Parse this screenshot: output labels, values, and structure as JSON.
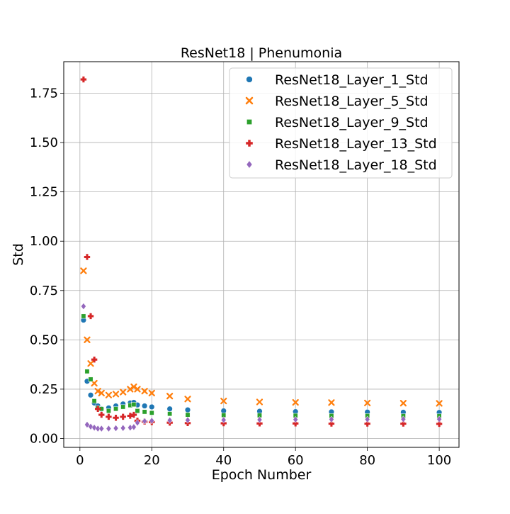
{
  "chart_data": {
    "type": "scatter",
    "title": "ResNet18 | Phenumonia",
    "xlabel": "Epoch Number",
    "ylabel": "Std",
    "xlim": [
      -4.5,
      105.5
    ],
    "ylim": [
      -0.045,
      1.91
    ],
    "xticks": [
      0,
      20,
      40,
      60,
      80,
      100
    ],
    "xtick_labels": [
      "0",
      "20",
      "40",
      "60",
      "80",
      "100"
    ],
    "yticks": [
      0.0,
      0.25,
      0.5,
      0.75,
      1.0,
      1.25,
      1.5,
      1.75
    ],
    "ytick_labels": [
      "0.00",
      "0.25",
      "0.50",
      "0.75",
      "1.00",
      "1.25",
      "1.50",
      "1.75"
    ],
    "grid": true,
    "legend_position": "top-right",
    "series": [
      {
        "name": "ResNet18_Layer_1_Std",
        "color": "#1f77b4",
        "marker": "circle",
        "x": [
          1,
          2,
          3,
          4,
          5,
          6,
          8,
          10,
          12,
          14,
          15,
          16,
          18,
          20,
          25,
          30,
          40,
          50,
          60,
          70,
          80,
          90,
          100
        ],
        "y": [
          0.6,
          0.29,
          0.22,
          0.18,
          0.165,
          0.15,
          0.155,
          0.165,
          0.175,
          0.18,
          0.183,
          0.17,
          0.165,
          0.16,
          0.15,
          0.145,
          0.14,
          0.138,
          0.136,
          0.135,
          0.134,
          0.133,
          0.132
        ]
      },
      {
        "name": "ResNet18_Layer_5_Std",
        "color": "#ff7f0e",
        "marker": "x",
        "x": [
          1,
          2,
          3,
          4,
          5,
          6,
          8,
          10,
          12,
          14,
          15,
          16,
          18,
          20,
          25,
          30,
          40,
          50,
          60,
          70,
          80,
          90,
          100
        ],
        "y": [
          0.85,
          0.5,
          0.38,
          0.28,
          0.24,
          0.23,
          0.22,
          0.225,
          0.235,
          0.25,
          0.262,
          0.25,
          0.24,
          0.23,
          0.215,
          0.2,
          0.19,
          0.185,
          0.183,
          0.182,
          0.18,
          0.179,
          0.178
        ]
      },
      {
        "name": "ResNet18_Layer_9_Std",
        "color": "#2ca02c",
        "marker": "square",
        "x": [
          1,
          2,
          3,
          4,
          5,
          6,
          8,
          10,
          12,
          14,
          15,
          16,
          18,
          20,
          25,
          30,
          40,
          50,
          60,
          70,
          80,
          90,
          100
        ],
        "y": [
          0.62,
          0.34,
          0.3,
          0.19,
          0.155,
          0.15,
          0.14,
          0.15,
          0.16,
          0.168,
          0.172,
          0.14,
          0.135,
          0.13,
          0.125,
          0.12,
          0.118,
          0.117,
          0.116,
          0.115,
          0.115,
          0.114,
          0.114
        ]
      },
      {
        "name": "ResNet18_Layer_13_Std",
        "color": "#d62728",
        "marker": "plus",
        "x": [
          1,
          2,
          3,
          4,
          5,
          6,
          8,
          10,
          12,
          14,
          15,
          16,
          18,
          20,
          25,
          30,
          40,
          50,
          60,
          70,
          80,
          90,
          100
        ],
        "y": [
          1.82,
          0.92,
          0.62,
          0.4,
          0.15,
          0.12,
          0.11,
          0.105,
          0.11,
          0.115,
          0.12,
          0.09,
          0.085,
          0.083,
          0.08,
          0.078,
          0.077,
          0.076,
          0.076,
          0.075,
          0.075,
          0.075,
          0.074
        ]
      },
      {
        "name": "ResNet18_Layer_18_Std",
        "color": "#9467bd",
        "marker": "diamond",
        "x": [
          1,
          2,
          3,
          4,
          5,
          6,
          8,
          10,
          12,
          14,
          15,
          16,
          18,
          20,
          25,
          30,
          40,
          50,
          60,
          70,
          80,
          90,
          100
        ],
        "y": [
          0.67,
          0.07,
          0.06,
          0.055,
          0.05,
          0.05,
          0.05,
          0.052,
          0.053,
          0.055,
          0.058,
          0.08,
          0.088,
          0.09,
          0.092,
          0.093,
          0.094,
          0.095,
          0.096,
          0.097,
          0.097,
          0.098,
          0.098
        ]
      }
    ]
  }
}
